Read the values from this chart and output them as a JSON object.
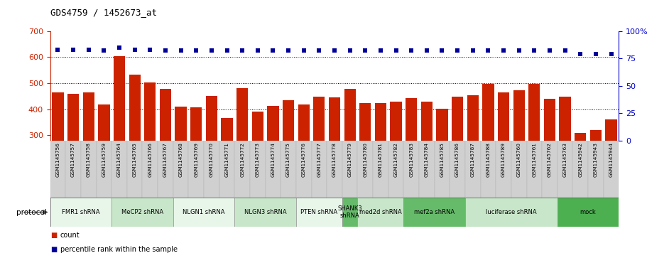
{
  "title": "GDS4759 / 1452673_at",
  "samples": [
    "GSM1145756",
    "GSM1145757",
    "GSM1145758",
    "GSM1145759",
    "GSM1145764",
    "GSM1145765",
    "GSM1145766",
    "GSM1145767",
    "GSM1145768",
    "GSM1145769",
    "GSM1145770",
    "GSM1145771",
    "GSM1145772",
    "GSM1145773",
    "GSM1145774",
    "GSM1145775",
    "GSM1145776",
    "GSM1145777",
    "GSM1145778",
    "GSM1145779",
    "GSM1145780",
    "GSM1145781",
    "GSM1145782",
    "GSM1145783",
    "GSM1145784",
    "GSM1145785",
    "GSM1145786",
    "GSM1145787",
    "GSM1145788",
    "GSM1145789",
    "GSM1145760",
    "GSM1145761",
    "GSM1145762",
    "GSM1145763",
    "GSM1145942",
    "GSM1145943",
    "GSM1145944"
  ],
  "counts": [
    465,
    458,
    466,
    418,
    603,
    534,
    503,
    478,
    410,
    408,
    452,
    366,
    482,
    390,
    414,
    434,
    418,
    447,
    446,
    478,
    425,
    425,
    430,
    444,
    428,
    403,
    449,
    454,
    497,
    464,
    473,
    498,
    440,
    447,
    310,
    320,
    360
  ],
  "percentiles": [
    83,
    83,
    83,
    82,
    85,
    83,
    83,
    82,
    82,
    82,
    82,
    82,
    82,
    82,
    82,
    82,
    82,
    82,
    82,
    82,
    82,
    82,
    82,
    82,
    82,
    82,
    82,
    82,
    82,
    82,
    82,
    82,
    82,
    82,
    79,
    79,
    79
  ],
  "protocols": [
    {
      "name": "FMR1 shRNA",
      "start": 0,
      "end": 4,
      "color": "#e8f5e9"
    },
    {
      "name": "MeCP2 shRNA",
      "start": 4,
      "end": 8,
      "color": "#c8e6c9"
    },
    {
      "name": "NLGN1 shRNA",
      "start": 8,
      "end": 12,
      "color": "#e8f5e9"
    },
    {
      "name": "NLGN3 shRNA",
      "start": 12,
      "end": 16,
      "color": "#c8e6c9"
    },
    {
      "name": "PTEN shRNA",
      "start": 16,
      "end": 19,
      "color": "#e8f5e9"
    },
    {
      "name": "SHANK3\nshRNA",
      "start": 19,
      "end": 20,
      "color": "#66bb6a"
    },
    {
      "name": "med2d shRNA",
      "start": 20,
      "end": 23,
      "color": "#c8e6c9"
    },
    {
      "name": "mef2a shRNA",
      "start": 23,
      "end": 27,
      "color": "#66bb6a"
    },
    {
      "name": "luciferase shRNA",
      "start": 27,
      "end": 33,
      "color": "#c8e6c9"
    },
    {
      "name": "mock",
      "start": 33,
      "end": 37,
      "color": "#4caf50"
    }
  ],
  "bar_color": "#cc2200",
  "dot_color": "#000099",
  "ylim_left": [
    280,
    700
  ],
  "ylim_right": [
    0,
    100
  ],
  "yticks_left": [
    300,
    400,
    500,
    600,
    700
  ],
  "yticks_right": [
    0,
    25,
    50,
    75,
    100
  ],
  "ytick_right_labels": [
    "0",
    "25",
    "50",
    "75",
    "100%"
  ],
  "grid_values": [
    400,
    500,
    600
  ],
  "bg_color": "#ffffff",
  "tick_color_left": "#cc2200",
  "tick_color_right": "#0000cc",
  "xticklabel_bg": "#d0d0d0",
  "plot_bg": "#ffffff"
}
